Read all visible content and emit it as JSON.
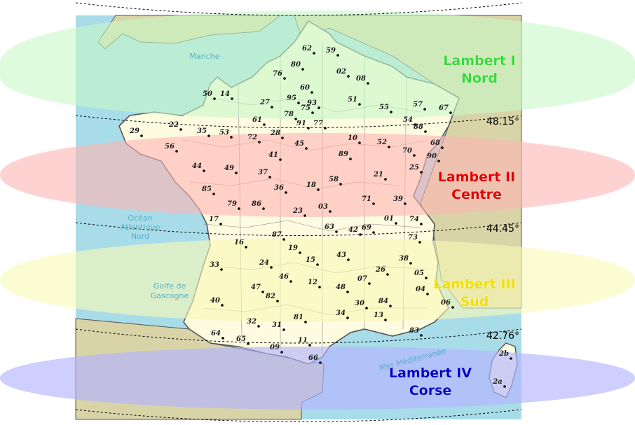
{
  "zones": [
    {
      "name": "Lambert I",
      "line2": "Nord",
      "color": "#3ad83a",
      "band": "#c8f8c8"
    },
    {
      "name": "Lambert II",
      "line2": "Centre",
      "color": "#e00000",
      "band": "#ffb4b4"
    },
    {
      "name": "Lambert III",
      "line2": "Sud",
      "color": "#f0e000",
      "band": "#fafab4"
    },
    {
      "name": "Lambert IV",
      "line2": "Corse",
      "color": "#0000c8",
      "band": "#b4b4ff"
    }
  ],
  "latitudes": [
    "48.15°",
    "44.45°",
    "42.76°"
  ],
  "seas": {
    "manche": "Manche",
    "ocean": [
      "Océan",
      "Atlantique",
      "Nord"
    ],
    "golfe": [
      "Golfe de",
      "Gascogne"
    ],
    "med": "Mer Méditerranée"
  },
  "departments": [
    "62",
    "59",
    "80",
    "76",
    "02",
    "08",
    "60",
    "50",
    "14",
    "27",
    "95",
    "51",
    "55",
    "57",
    "67",
    "78",
    "75",
    "93",
    "91",
    "77",
    "54",
    "88",
    "61",
    "22",
    "29",
    "35",
    "53",
    "72",
    "28",
    "10",
    "52",
    "68",
    "45",
    "41",
    "89",
    "70",
    "90",
    "56",
    "44",
    "49",
    "37",
    "21",
    "25",
    "18",
    "58",
    "36",
    "85",
    "79",
    "86",
    "71",
    "39",
    "23",
    "03",
    "01",
    "74",
    "17",
    "87",
    "63",
    "42",
    "69",
    "73",
    "16",
    "19",
    "43",
    "38",
    "33",
    "24",
    "15",
    "26",
    "05",
    "46",
    "47",
    "12",
    "48",
    "07",
    "04",
    "82",
    "40",
    "30",
    "84",
    "06",
    "32",
    "81",
    "13",
    "83",
    "34",
    "31",
    "64",
    "65",
    "11",
    "09",
    "66",
    "2b",
    "2a"
  ],
  "colors": {
    "sea": "#a8dce8",
    "land_in": "#fdfbe0",
    "land_out": "#f0ead0",
    "border": "#555555",
    "outside": "#d8d4a8",
    "coast": "#7ac8d8"
  }
}
